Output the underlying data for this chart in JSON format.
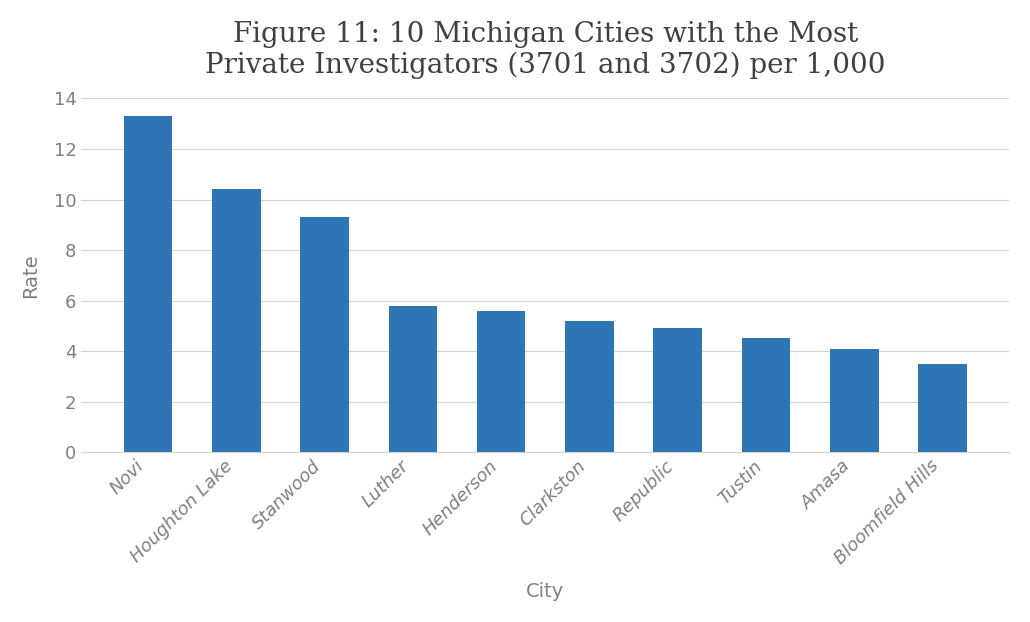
{
  "title": "Figure 11: 10 Michigan Cities with the Most\nPrivate Investigators (3701 and 3702) per 1,000",
  "xlabel": "City",
  "ylabel": "Rate",
  "categories": [
    "Novi",
    "Houghton Lake",
    "Stanwood",
    "Luther",
    "Henderson",
    "Clarkston",
    "Republic",
    "Tustin",
    "Amasa",
    "Bloomfield Hills"
  ],
  "values": [
    13.3,
    10.4,
    9.3,
    5.8,
    5.6,
    5.2,
    4.9,
    4.5,
    4.1,
    3.5
  ],
  "bar_color": "#2E75B6",
  "ylim": [
    0,
    14
  ],
  "yticks": [
    0,
    2,
    4,
    6,
    8,
    10,
    12,
    14
  ],
  "background_color": "#ffffff",
  "grid_color": "#d3d3d3",
  "title_fontsize": 20,
  "axis_label_fontsize": 14,
  "tick_fontsize": 13,
  "title_color": "#404040",
  "tick_label_color": "#808080",
  "bar_width": 0.55
}
